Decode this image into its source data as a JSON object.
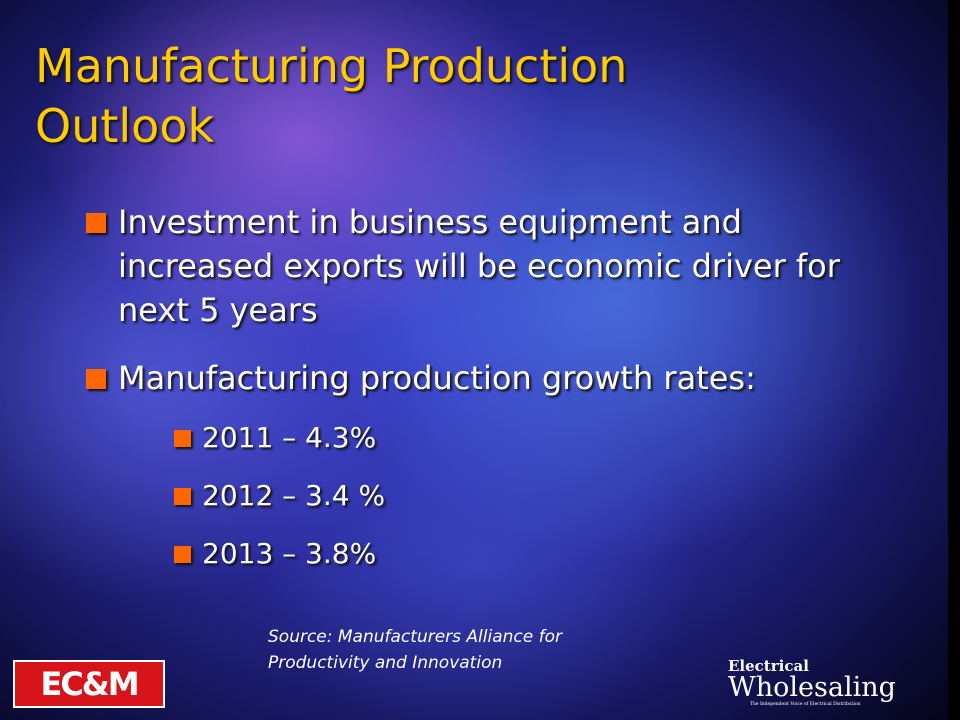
{
  "slide": {
    "title": "Manufacturing Production Outlook",
    "bullets": [
      {
        "text": "Investment in business equipment and increased exports will be economic driver for next 5 years"
      },
      {
        "text": "Manufacturing production growth rates:",
        "sub_bullets": [
          "2011 – 4.3%",
          "2012 – 3.4 %",
          "2013 – 3.8%"
        ]
      }
    ],
    "source": "Source: Manufacturers Alliance for Productivity and Innovation",
    "logos": {
      "left": "EC&M",
      "right_top": "Electrical",
      "right_main": "Wholesaling",
      "right_tagline": "The Independent Voice of Electrical Distribution"
    }
  }
}
